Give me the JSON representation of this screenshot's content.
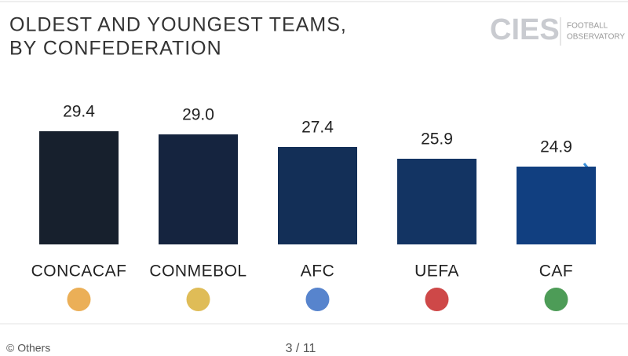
{
  "chart_data": {
    "type": "bar",
    "title": [
      "OLDEST AND YOUNGEST TEAMS,",
      "BY CONFEDERATION"
    ],
    "categories": [
      "CONCACAF",
      "CONMEBOL",
      "AFC",
      "UEFA",
      "CAF"
    ],
    "values": [
      29.4,
      29.0,
      27.4,
      25.9,
      24.9
    ],
    "value_labels": [
      "29.4",
      "29.0",
      "27.4",
      "25.9",
      "24.9"
    ],
    "colors": [
      "#17202d",
      "#15243f",
      "#132f57",
      "#133463",
      "#113f80"
    ],
    "ylim": [
      15,
      30
    ]
  },
  "logo": {
    "brand": "CIES",
    "line1": "FOOTBALL",
    "line2": "OBSERVATORY"
  },
  "footer": {
    "credit": "© Others",
    "page": "3 / 11"
  }
}
